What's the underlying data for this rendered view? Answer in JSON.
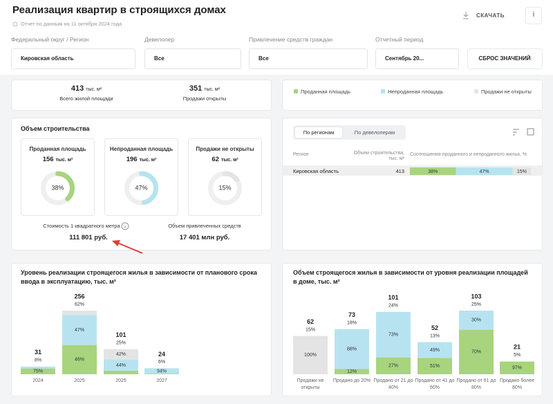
{
  "header": {
    "title": "Реализация квартир в строящихся домах",
    "subtitle": "Отчет по данным на 11 октября 2024 года",
    "download": "СКАЧАТЬ",
    "info": "i"
  },
  "filters": [
    {
      "label": "Федеральный округ / Регион",
      "value": "Кировская область"
    },
    {
      "label": "Девелопер",
      "value": "Все"
    },
    {
      "label": "Привлечение средств граждан",
      "value": "Все"
    },
    {
      "label": "Отчетный период",
      "value": "Сентябрь 20..."
    }
  ],
  "reset": "СБРОС ЗНАЧЕНИЙ",
  "summary": [
    {
      "value": 413,
      "unit": "тыс. м²",
      "label": "Всего жилой площади"
    },
    {
      "value": 351,
      "unit": "тыс. м²",
      "label": "Продажи открыты"
    }
  ],
  "volume": {
    "title": "Объем строительства",
    "cards": [
      {
        "title": "Проданная площадь",
        "value": 156,
        "unit": "тыс. м²",
        "percent": 38,
        "percent_label": "38%",
        "color": "#a8d47e"
      },
      {
        "title": "Непроданная площадь",
        "value": 196,
        "unit": "тыс. м²",
        "percent": 47,
        "percent_label": "47%",
        "color": "#b7e3f1"
      },
      {
        "title": "Продажи не открыты",
        "value": 62,
        "unit": "тыс. м²",
        "percent": 15,
        "percent_label": "15%",
        "color": "#e4e4e4"
      }
    ],
    "price_label": "Стоимость 1 квадратного метра",
    "price": "111 801 руб.",
    "funds_label": "Объем привлеченных средств",
    "funds": "17 401 млн руб."
  },
  "table": {
    "tabs": [
      "По регионам",
      "По девелоперам"
    ],
    "columns": [
      "Регион",
      "Объем строительства, тыс. м²",
      "Соотношения проданного и непроданного жилья, %"
    ],
    "rows": [
      {
        "region": "Кировская область",
        "volume": 413,
        "shares": [
          38,
          47,
          15
        ],
        "share_labels": [
          "38%",
          "47%",
          "15%"
        ],
        "colors": [
          "#a8d47e",
          "#b7e3f1",
          "#e4e4e4"
        ]
      }
    ]
  },
  "chart_data": [
    {
      "type": "stacked-bar",
      "title": "Уровень реализации строящегося жилья в зависимости от планового срока ввода в эксплуатацию, тыс. м²",
      "categories": [
        "2024",
        "2025",
        "2026",
        "2027"
      ],
      "values": [
        31,
        256,
        101,
        24
      ],
      "share_labels": [
        "8%",
        "62%",
        "25%",
        "6%"
      ],
      "series": [
        {
          "name": "Проданная площадь",
          "color": "#a8d47e",
          "values": [
            75,
            46,
            14,
            6
          ],
          "value_labels": [
            "75%",
            "46%",
            null,
            null
          ]
        },
        {
          "name": "Непроданная площадь",
          "color": "#b7e3f1",
          "values": [
            25,
            47,
            44,
            94
          ],
          "value_labels": [
            null,
            "47%",
            "44%",
            "94%"
          ]
        },
        {
          "name": "Продажи не открыты",
          "color": "#e4e4e4",
          "values": [
            0,
            7,
            42,
            0
          ],
          "value_labels": [
            null,
            null,
            "42%",
            null
          ]
        }
      ]
    },
    {
      "type": "stacked-bar",
      "title": "Объем строящегося жилья в зависимости от уровня реализации площадей в доме, тыс. м²",
      "categories": [
        "Продажи не открыты",
        "Продано до 20%",
        "Продано от 21 до 40%",
        "Продано от 41 до 60%",
        "Продано от 61 до 80%",
        "Продано более 80%"
      ],
      "values": [
        62,
        73,
        101,
        52,
        103,
        21
      ],
      "share_labels": [
        "15%",
        "18%",
        "24%",
        "13%",
        "25%",
        "5%"
      ],
      "series": [
        {
          "color": "#a8d47e",
          "values": [
            0,
            12,
            27,
            51,
            70,
            97
          ],
          "value_labels": [
            null,
            "12%",
            "27%",
            "51%",
            "70%",
            "97%"
          ]
        },
        {
          "color": "#b7e3f1",
          "values": [
            0,
            88,
            73,
            49,
            30,
            3
          ],
          "value_labels": [
            null,
            "88%",
            "73%",
            "49%",
            "30%",
            null
          ]
        },
        {
          "color": "#e4e4e4",
          "values": [
            100,
            0,
            0,
            0,
            0,
            0
          ],
          "value_labels": [
            "100%",
            null,
            null,
            null,
            null,
            null
          ]
        }
      ]
    }
  ]
}
